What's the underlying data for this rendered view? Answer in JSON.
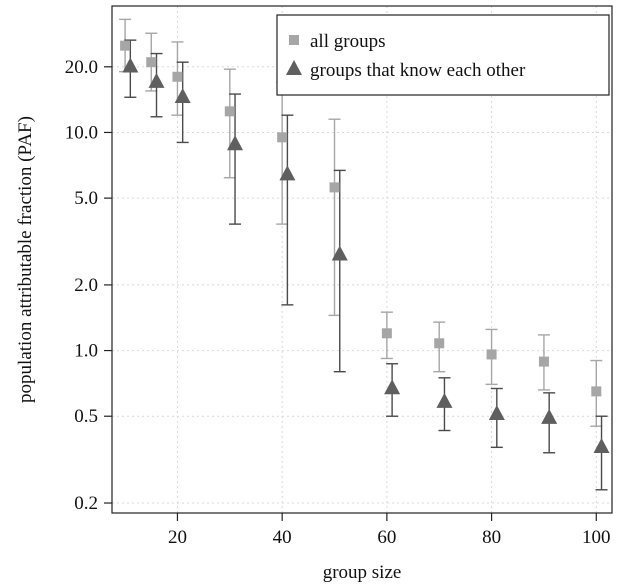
{
  "chart_data": {
    "type": "scatter",
    "title": "",
    "xlabel": "group size",
    "ylabel": "population attributable fraction (PAF)",
    "x_scale": "linear",
    "y_scale": "log",
    "xlim": [
      7.5,
      103
    ],
    "ylim": [
      0.18,
      38
    ],
    "x_ticks": [
      20,
      40,
      60,
      80,
      100
    ],
    "x_tick_labels": [
      "20",
      "40",
      "60",
      "80",
      "100"
    ],
    "y_ticks": [
      0.2,
      0.5,
      1.0,
      2.0,
      5.0,
      10.0,
      20.0
    ],
    "y_tick_labels": [
      "0.2",
      "0.5",
      "1.0",
      "2.0",
      "5.0",
      "10.0",
      "20.0"
    ],
    "grid": true,
    "legend_position": "top-right",
    "series": [
      {
        "name": "all groups",
        "marker": "square",
        "color": "#a6a6a6",
        "errorbar_color": "#a6a6a6",
        "points": [
          {
            "x": 10,
            "y": 25.0,
            "low": 19.0,
            "high": 33.0
          },
          {
            "x": 15,
            "y": 21.0,
            "low": 15.5,
            "high": 28.5
          },
          {
            "x": 20,
            "y": 18.0,
            "low": 12.0,
            "high": 26.0
          },
          {
            "x": 30,
            "y": 12.5,
            "low": 6.2,
            "high": 19.5
          },
          {
            "x": 40,
            "y": 9.5,
            "low": 3.8,
            "high": 17.0
          },
          {
            "x": 50,
            "y": 5.6,
            "low": 1.45,
            "high": 11.5
          },
          {
            "x": 60,
            "y": 1.2,
            "low": 0.92,
            "high": 1.5
          },
          {
            "x": 70,
            "y": 1.08,
            "low": 0.8,
            "high": 1.35
          },
          {
            "x": 80,
            "y": 0.96,
            "low": 0.7,
            "high": 1.25
          },
          {
            "x": 90,
            "y": 0.89,
            "low": 0.66,
            "high": 1.18
          },
          {
            "x": 100,
            "y": 0.65,
            "low": 0.45,
            "high": 0.9
          }
        ]
      },
      {
        "name": "groups that know each other",
        "marker": "triangle",
        "color": "#5f5f5f",
        "errorbar_color": "#4a4a4a",
        "points": [
          {
            "x": 11,
            "y": 20.0,
            "low": 14.5,
            "high": 26.5
          },
          {
            "x": 16,
            "y": 17.0,
            "low": 11.8,
            "high": 23.0
          },
          {
            "x": 21,
            "y": 14.5,
            "low": 9.0,
            "high": 21.0
          },
          {
            "x": 31,
            "y": 8.8,
            "low": 3.8,
            "high": 15.0
          },
          {
            "x": 41,
            "y": 6.4,
            "low": 1.62,
            "high": 12.0
          },
          {
            "x": 51,
            "y": 2.75,
            "low": 0.8,
            "high": 6.7
          },
          {
            "x": 61,
            "y": 0.67,
            "low": 0.5,
            "high": 0.87
          },
          {
            "x": 71,
            "y": 0.58,
            "low": 0.43,
            "high": 0.75
          },
          {
            "x": 81,
            "y": 0.51,
            "low": 0.36,
            "high": 0.67
          },
          {
            "x": 91,
            "y": 0.49,
            "low": 0.34,
            "high": 0.64
          },
          {
            "x": 101,
            "y": 0.36,
            "low": 0.23,
            "high": 0.5
          }
        ]
      }
    ]
  }
}
